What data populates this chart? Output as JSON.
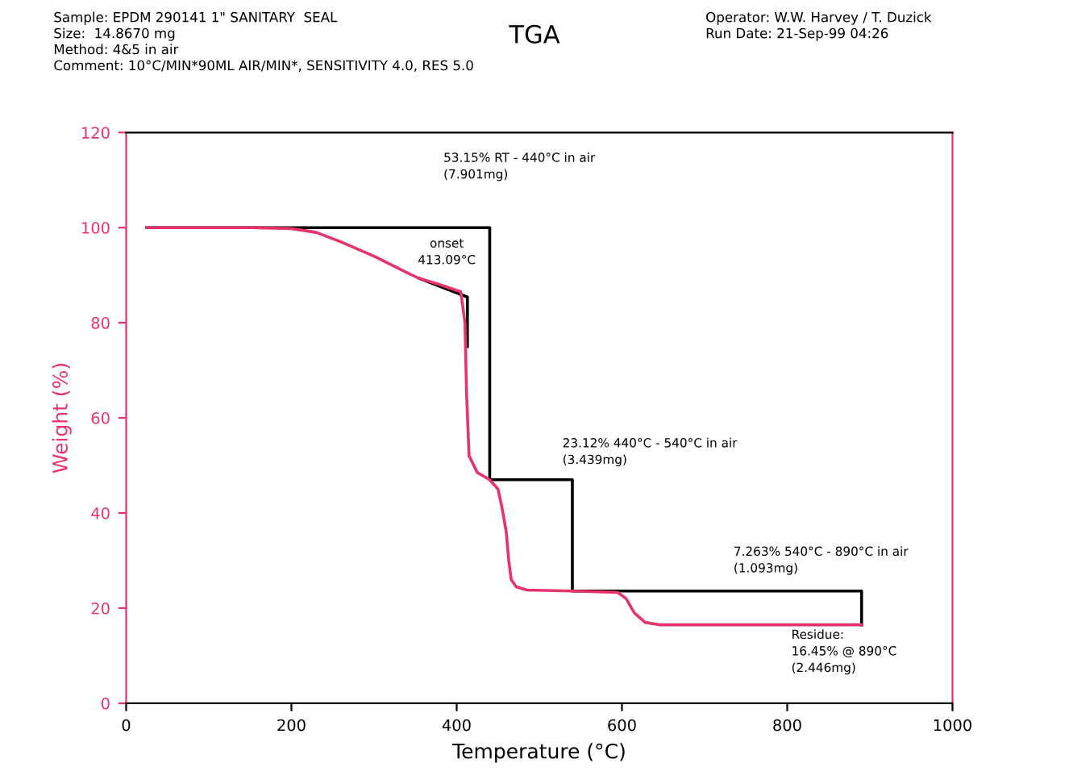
{
  "chart_data": {
    "type": "line",
    "title": "TGA",
    "subtitle": [
      "Sample: EPDM 290141 1\" SANITARY  SEAL",
      "Size:  14.8670 mg",
      "Method: 4&5 in air",
      "Comment: 10°C/MIN*90ML AIR/MIN*, SENSITIVITY 4.0, RES 5.0",
      "Operator: W.W. Harvey / T. Duzick",
      "Run Date: 21-Sep-99 04:26"
    ],
    "xlabel": "Temperature (°C)",
    "ylabel": "Weight (%)",
    "xlim": [
      0,
      1000
    ],
    "xticks": [
      0,
      200,
      400,
      600,
      800,
      1000
    ],
    "ylim": [
      0,
      120
    ],
    "yticks": [
      0,
      20,
      40,
      60,
      80,
      100,
      120
    ],
    "grid": false,
    "legend": false,
    "marker": "none",
    "line_style": "solid",
    "series": [
      {
        "color": "#e8336a",
        "x": [
          25,
          150,
          200,
          230,
          260,
          300,
          340,
          355,
          380,
          405,
          410,
          412,
          415,
          425,
          440,
          450,
          455,
          460,
          463,
          466,
          472,
          485,
          540,
          595,
          605,
          615,
          628,
          645,
          890
        ],
        "values": [
          100,
          100,
          99.8,
          99,
          97,
          94,
          90.5,
          89.3,
          88,
          86.5,
          80,
          65,
          52,
          48.5,
          47,
          45,
          41,
          36,
          30,
          26,
          24.5,
          23.8,
          23.6,
          23.3,
          22,
          19,
          17,
          16.5,
          16.5
        ]
      },
      {
        "color": "#000000",
        "x": [
          25,
          440,
          440,
          440,
          540,
          540,
          540,
          890,
          890,
          890,
          null,
          355,
          413,
          413
        ],
        "values": [
          100,
          100,
          47,
          47,
          47,
          23.6,
          23.6,
          23.6,
          16.5,
          16.5,
          null,
          89.3,
          85.4,
          75
        ]
      }
    ],
    "annotations": [
      "53.15% RT - 440°C in air\n(7.901mg)",
      "onset\n413.09°C",
      "23.12% 440°C - 540°C in air\n(3.439mg)",
      "7.263% 540°C - 890°C in air\n(1.093mg)",
      "Residue:\n16.45% @ 890°C\n(2.446mg)"
    ]
  }
}
